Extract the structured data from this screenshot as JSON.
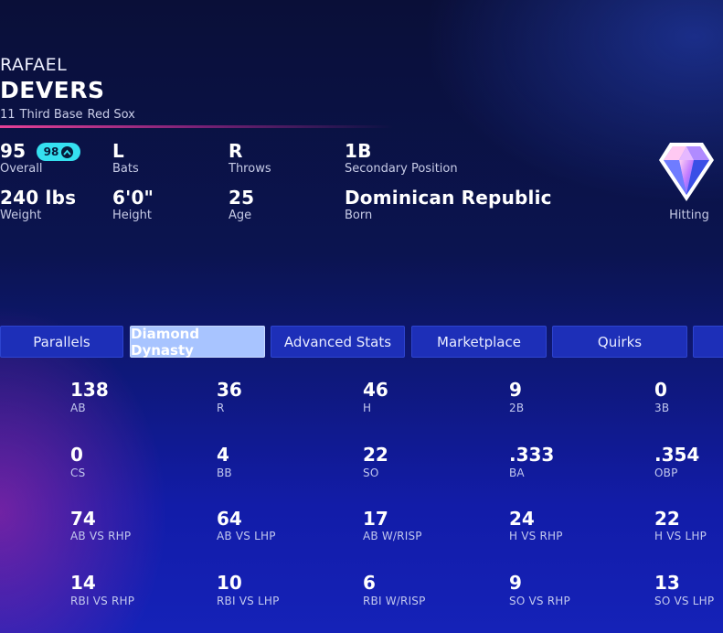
{
  "player": {
    "first_name": "RAFAEL",
    "last_name": "DEVERS",
    "number": "11",
    "position": "Third Base",
    "team": "Red Sox"
  },
  "info": {
    "overall": "95",
    "overall_label": "Overall",
    "potential": "98",
    "bats": "L",
    "bats_label": "Bats",
    "throws": "R",
    "throws_label": "Throws",
    "secondary_position": "1B",
    "secondary_position_label": "Secondary Position",
    "weight": "240 lbs",
    "weight_label": "Weight",
    "height": "6'0\"",
    "height_label": "Height",
    "age": "25",
    "age_label": "Age",
    "born": "Dominican Republic",
    "born_label": "Born"
  },
  "rarity": {
    "label": "Hitting",
    "icon": "diamond-gem-icon"
  },
  "tabs": [
    {
      "label": "Parallels",
      "active": false
    },
    {
      "label": "Diamond Dynasty",
      "active": true
    },
    {
      "label": "Advanced Stats",
      "active": false
    },
    {
      "label": "Marketplace",
      "active": false
    },
    {
      "label": "Quirks",
      "active": false
    }
  ],
  "stats": [
    [
      {
        "value": "138",
        "label": "AB"
      },
      {
        "value": "36",
        "label": "R"
      },
      {
        "value": "46",
        "label": "H"
      },
      {
        "value": "9",
        "label": "2B"
      },
      {
        "value": "0",
        "label": "3B"
      }
    ],
    [
      {
        "value": "0",
        "label": "CS"
      },
      {
        "value": "4",
        "label": "BB"
      },
      {
        "value": "22",
        "label": "SO"
      },
      {
        "value": ".333",
        "label": "BA"
      },
      {
        "value": ".354",
        "label": "OBP"
      }
    ],
    [
      {
        "value": "74",
        "label": "AB VS RHP"
      },
      {
        "value": "64",
        "label": "AB VS LHP"
      },
      {
        "value": "17",
        "label": "AB W/RISP"
      },
      {
        "value": "24",
        "label": "H VS RHP"
      },
      {
        "value": "22",
        "label": "H VS LHP"
      }
    ],
    [
      {
        "value": "14",
        "label": "RBI VS RHP"
      },
      {
        "value": "10",
        "label": "RBI VS LHP"
      },
      {
        "value": "6",
        "label": "RBI W/RISP"
      },
      {
        "value": "9",
        "label": "SO VS RHP"
      },
      {
        "value": "13",
        "label": "SO VS LHP"
      }
    ]
  ],
  "colors": {
    "accent_cyan": "#35e0f0",
    "tab_active": "#a8c4ff",
    "tab_inactive": "#1d2fb8",
    "header_rule": "#ff46a0"
  }
}
